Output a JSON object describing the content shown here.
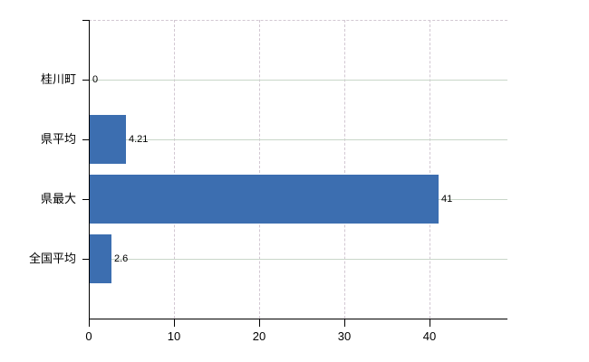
{
  "chart_data": {
    "type": "bar",
    "orientation": "horizontal",
    "title": "",
    "categories": [
      "桂川町",
      "県平均",
      "県最大",
      "全国平均"
    ],
    "values": [
      0,
      4.21,
      41,
      2.6
    ],
    "value_labels": [
      "0",
      "4.21",
      "41",
      "2.6"
    ],
    "x_ticks": [
      0,
      10,
      20,
      30,
      40
    ],
    "x_tick_labels": [
      "0",
      "10",
      "20",
      "30",
      "40"
    ],
    "xlim": [
      0,
      49.15
    ],
    "grid": true,
    "legend": false,
    "colors": {
      "bar": "#3c6eb0",
      "axis": "#000000",
      "text": "#000000",
      "value_gridline": "#d2c7d2",
      "category_gridline": "#c9d6c9",
      "background": "#ffffff"
    }
  }
}
